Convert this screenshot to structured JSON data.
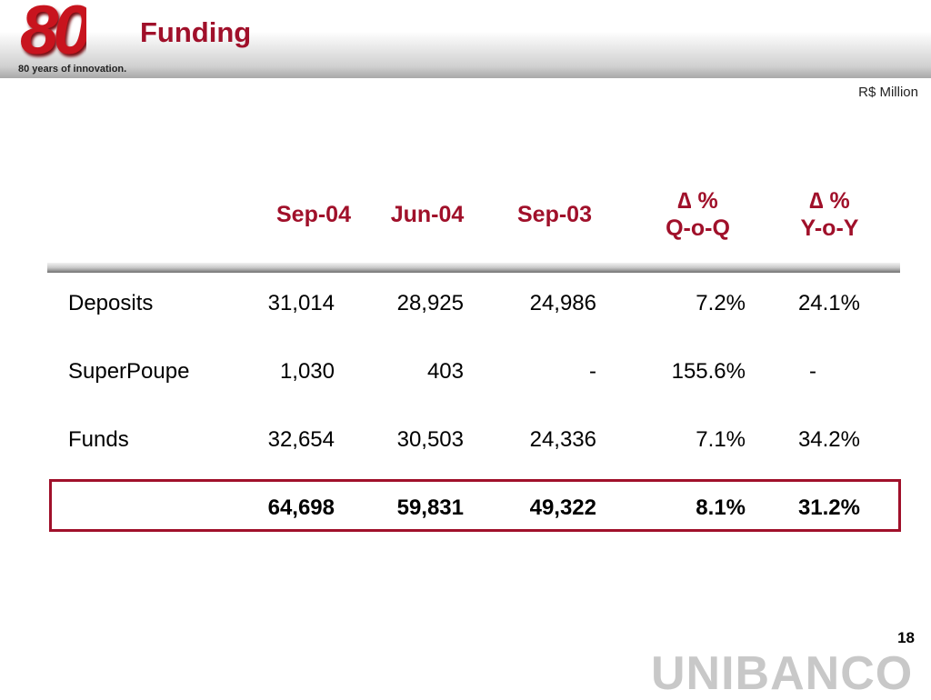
{
  "header": {
    "logo_text": "80",
    "tagline": "80 years of innovation.",
    "title": "Funding"
  },
  "unit": "R$ Million",
  "columns": [
    {
      "l1": "Sep-04"
    },
    {
      "l1": "Jun-04"
    },
    {
      "l1": "Sep-03"
    },
    {
      "l1": "∆ %",
      "l2": "Q-o-Q"
    },
    {
      "l1": "∆ %",
      "l2": "Y-o-Y"
    }
  ],
  "rows": [
    {
      "label": "Deposits",
      "v": [
        "31,014",
        "28,925",
        "24,986",
        "7.2%",
        "24.1%"
      ]
    },
    {
      "label": "SuperPoupe",
      "v": [
        "1,030",
        "403",
        "-",
        "155.6%",
        "-"
      ]
    },
    {
      "label": "Funds",
      "v": [
        "32,654",
        "30,503",
        "24,336",
        "7.1%",
        "34.2%"
      ]
    }
  ],
  "total": {
    "v": [
      "64,698",
      "59,831",
      "49,322",
      "8.1%",
      "31.2%"
    ]
  },
  "footer": {
    "page": "18",
    "brand": "UNIBANCO"
  }
}
